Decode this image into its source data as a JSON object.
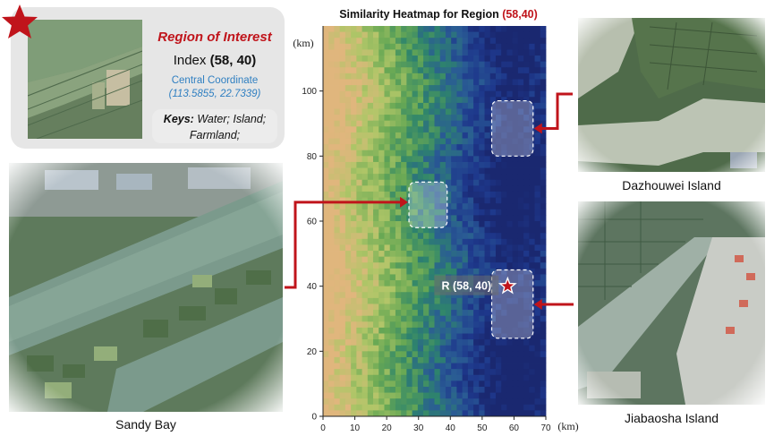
{
  "roi": {
    "title": "Region of Interest",
    "index_prefix": "Index ",
    "index_value": "(58, 40)",
    "central_label": "Central Coordinate",
    "central_value": "(113.5855, 22.7339)",
    "keys_label": "Keys:",
    "keys_value": " Water; Island; Farmland;"
  },
  "heatmap": {
    "title": "Similarity Heatmap for Region ",
    "title_coord": "(58,40)",
    "x_unit": "(km)",
    "y_unit": "(km)",
    "marker_label": "R (58, 40)"
  },
  "captions": {
    "sandy": "Sandy Bay",
    "dazhou": "Dazhouwei Island",
    "jiabao": "Jiabaosha Island"
  },
  "colors": {
    "accent_red": "#c0141b",
    "coord_blue": "#2f7fc1"
  },
  "chart_data": {
    "type": "heatmap",
    "title": "Similarity Heatmap for Region (58,40)",
    "xlabel": "(km)",
    "ylabel": "(km)",
    "xlim": [
      0,
      70
    ],
    "ylim": [
      0,
      120
    ],
    "x_ticks": [
      0,
      10,
      20,
      30,
      40,
      50,
      60,
      70
    ],
    "y_ticks": [
      0,
      20,
      40,
      60,
      80,
      100
    ],
    "colormap": "yellow-green-blue (low to high similarity)",
    "trend": "similarity increases from west (x≈0, low) to east (x≈55–65, high)",
    "marker": {
      "label": "R (58, 40)",
      "x": 58,
      "y": 40
    },
    "highlight_boxes": [
      {
        "x0": 53,
        "x1": 66,
        "y0": 80,
        "y1": 97,
        "links_to": "Dazhouwei Island"
      },
      {
        "x0": 27,
        "x1": 39,
        "y0": 58,
        "y1": 72,
        "links_to": "Sandy Bay"
      },
      {
        "x0": 53,
        "x1": 66,
        "y0": 24,
        "y1": 45,
        "links_to": "Jiabaosha Island"
      }
    ]
  }
}
